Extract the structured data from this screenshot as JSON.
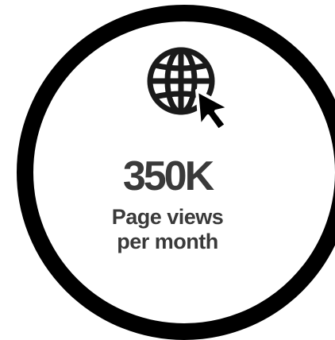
{
  "stat": {
    "value": "350K",
    "label_line1": "Page views",
    "label_line2": "per month"
  },
  "icon": "globe-cursor-icon",
  "colors": {
    "ring": "#000000",
    "text": "#3a3a3a",
    "background": "#ffffff"
  }
}
